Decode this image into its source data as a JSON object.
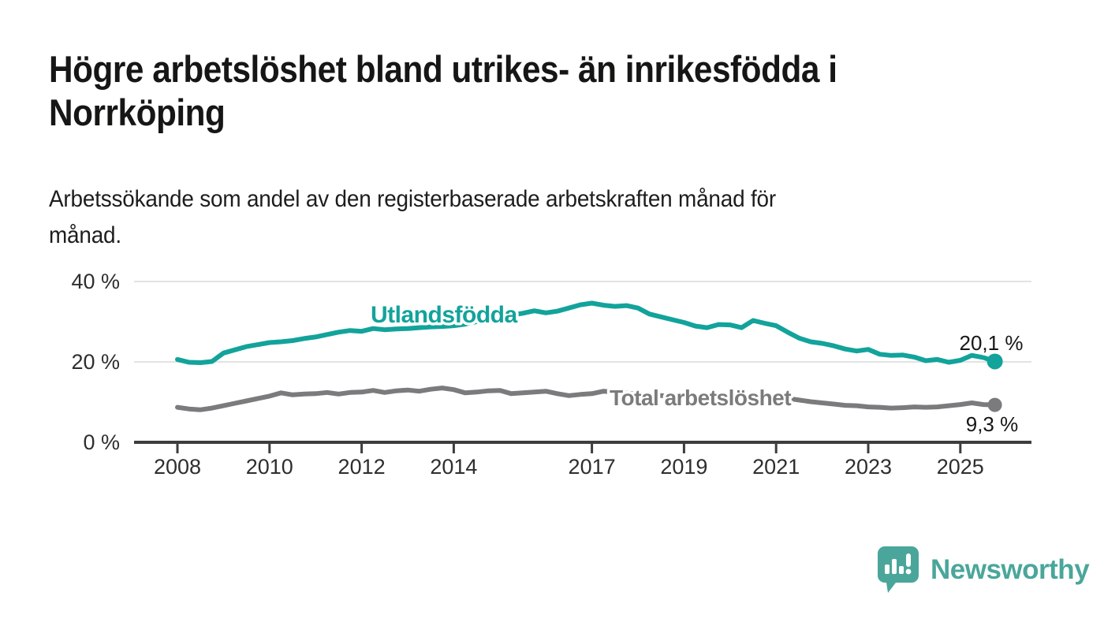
{
  "header": {
    "title_line1": "Högre arbetslöshet bland utrikes- än inrikesfödda i",
    "title_line2": "Norrköping",
    "subtitle_line1": "Arbetssökande som andel av den registerbaserade arbetskraften månad för",
    "subtitle_line2": "månad."
  },
  "chart_data": {
    "type": "line",
    "title": "Högre arbetslöshet bland utrikes- än inrikesfödda i Norrköping",
    "subtitle": "Arbetssökande som andel av den registerbaserade arbetskraften månad för månad.",
    "unit": "%",
    "grid": "horizontal",
    "legend_position": "inline-labels",
    "ylim": [
      0,
      40
    ],
    "y_ticks": [
      {
        "label": "0 %",
        "value": 0
      },
      {
        "label": "20 %",
        "value": 20
      },
      {
        "label": "40 %",
        "value": 40
      }
    ],
    "y_gridlines": [
      20,
      40
    ],
    "x_ticks": [
      2008,
      2010,
      2012,
      2014,
      2017,
      2019,
      2021,
      2023,
      2025
    ],
    "x": [
      2008,
      2008.25,
      2008.5,
      2008.75,
      2009,
      2009.25,
      2009.5,
      2009.75,
      2010,
      2010.25,
      2010.5,
      2010.75,
      2011,
      2011.25,
      2011.5,
      2011.75,
      2012,
      2012.25,
      2012.5,
      2012.75,
      2013,
      2013.25,
      2013.5,
      2013.75,
      2014,
      2014.25,
      2014.5,
      2014.75,
      2015,
      2015.25,
      2015.5,
      2015.75,
      2016,
      2016.25,
      2016.5,
      2016.75,
      2017,
      2017.25,
      2017.5,
      2017.75,
      2018,
      2018.25,
      2018.5,
      2018.75,
      2019,
      2019.25,
      2019.5,
      2019.75,
      2020,
      2020.25,
      2020.5,
      2020.75,
      2021,
      2021.25,
      2021.5,
      2021.75,
      2022,
      2022.25,
      2022.5,
      2022.75,
      2023,
      2023.25,
      2023.5,
      2023.75,
      2024,
      2024.25,
      2024.5,
      2024.75,
      2025,
      2025.25,
      2025.5,
      2025.75
    ],
    "series": [
      {
        "name": "Utlandsfödda",
        "color": "#12a39b",
        "end_label": "20,1 %",
        "end_value": 20.1,
        "values": [
          20.6,
          19.9,
          19.8,
          20.1,
          22.2,
          23.0,
          23.8,
          24.3,
          24.8,
          25.0,
          25.3,
          25.8,
          26.2,
          26.8,
          27.4,
          27.8,
          27.6,
          28.3,
          28.0,
          28.2,
          28.3,
          28.5,
          28.7,
          28.8,
          29.0,
          29.4,
          30.0,
          30.5,
          31.0,
          31.6,
          32.1,
          32.7,
          32.2,
          32.6,
          33.4,
          34.2,
          34.6,
          34.1,
          33.8,
          34.0,
          33.4,
          31.9,
          31.2,
          30.5,
          29.8,
          28.9,
          28.5,
          29.3,
          29.2,
          28.5,
          30.3,
          29.6,
          29.0,
          27.4,
          25.9,
          25.0,
          24.6,
          24.0,
          23.2,
          22.7,
          23.1,
          21.9,
          21.6,
          21.7,
          21.2,
          20.3,
          20.6,
          19.9,
          20.4,
          21.6,
          21.1,
          20.1
        ]
      },
      {
        "name": "Total arbetslöshet",
        "color": "#7b7b7d",
        "end_label": "9,3 %",
        "end_value": 9.3,
        "values": [
          8.7,
          8.3,
          8.1,
          8.5,
          9.1,
          9.7,
          10.3,
          10.9,
          11.5,
          12.3,
          11.8,
          12.0,
          12.1,
          12.4,
          12.0,
          12.4,
          12.5,
          12.9,
          12.4,
          12.8,
          13.0,
          12.7,
          13.2,
          13.5,
          13.1,
          12.3,
          12.5,
          12.8,
          12.9,
          12.1,
          12.3,
          12.5,
          12.7,
          12.1,
          11.6,
          11.9,
          12.1,
          12.7,
          12.5,
          12.2,
          12.0,
          11.8,
          11.6,
          11.4,
          11.2,
          11.1,
          11.0,
          11.0,
          11.1,
          11.3,
          11.5,
          11.4,
          11.2,
          10.9,
          10.5,
          10.1,
          9.8,
          9.5,
          9.2,
          9.1,
          8.8,
          8.7,
          8.5,
          8.6,
          8.8,
          8.7,
          8.8,
          9.1,
          9.4,
          9.8,
          9.4,
          9.3
        ]
      }
    ]
  },
  "branding": {
    "logo_text": "Newsworthy",
    "logo_color": "#4aa69b"
  },
  "colors": {
    "background": "#ffffff",
    "axis": "#3d3d3d",
    "gridline": "#e3e3e3",
    "tick_label": "#2e2e2e",
    "title_text": "#161615",
    "series_foreign_born": "#12a39b",
    "series_total": "#7b7b7d"
  }
}
